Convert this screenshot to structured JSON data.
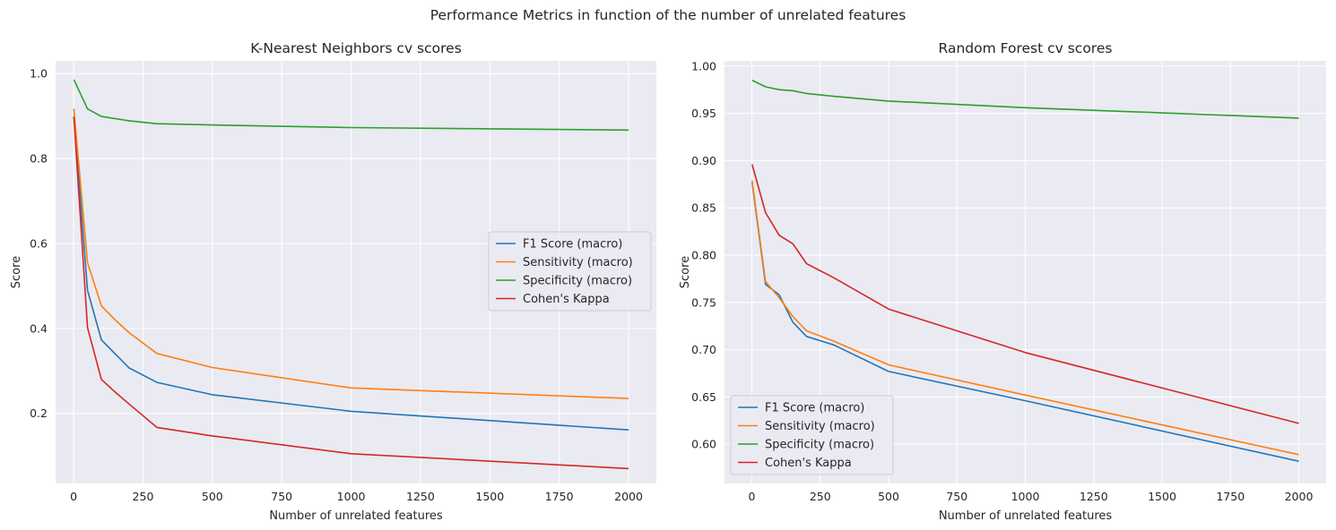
{
  "suptitle": "Performance Metrics in function of the number of unrelated features",
  "chart_data": [
    {
      "type": "line",
      "title": "K-Nearest Neighbors cv scores",
      "xlabel": "Number of unrelated features",
      "ylabel": "Score",
      "xlim": [
        -65,
        2100
      ],
      "ylim": [
        0.035,
        1.03
      ],
      "xticks": [
        0,
        250,
        500,
        750,
        1000,
        1250,
        1500,
        1750,
        2000
      ],
      "xtick_labels": [
        "0",
        "250",
        "500",
        "750",
        "1000",
        "1250",
        "1500",
        "1750",
        "2000"
      ],
      "yticks": [
        0.2,
        0.4,
        0.6,
        0.8,
        1.0
      ],
      "ytick_labels": [
        "0.2",
        "0.4",
        "0.6",
        "0.8",
        "1.0"
      ],
      "grid": true,
      "legend_position": "center-right",
      "x": [
        1,
        50,
        100,
        150,
        200,
        300,
        500,
        1000,
        2000
      ],
      "series": [
        {
          "name": "F1 Score (macro)",
          "color": "#1f77b4",
          "values": [
            0.9,
            0.49,
            0.373,
            0.34,
            0.307,
            0.273,
            0.244,
            0.205,
            0.161
          ]
        },
        {
          "name": "Sensitivity (macro)",
          "color": "#ff7f0e",
          "values": [
            0.917,
            0.555,
            0.453,
            0.42,
            0.39,
            0.341,
            0.308,
            0.26,
            0.235
          ]
        },
        {
          "name": "Specificity (macro)",
          "color": "#2ca02c",
          "values": [
            0.986,
            0.917,
            0.899,
            0.894,
            0.889,
            0.882,
            0.879,
            0.873,
            0.867
          ]
        },
        {
          "name": "Cohen's Kappa",
          "color": "#d62728",
          "values": [
            0.897,
            0.402,
            0.28,
            0.25,
            0.222,
            0.167,
            0.147,
            0.105,
            0.07
          ]
        }
      ]
    },
    {
      "type": "line",
      "title": "Random Forest cv scores",
      "xlabel": "Number of unrelated features",
      "ylabel": "Score",
      "xlim": [
        -100,
        2100
      ],
      "ylim": [
        0.5585,
        1.0055
      ],
      "xticks": [
        0,
        250,
        500,
        750,
        1000,
        1250,
        1500,
        1750,
        2000
      ],
      "xtick_labels": [
        "0",
        "250",
        "500",
        "750",
        "1000",
        "1250",
        "1500",
        "1750",
        "2000"
      ],
      "yticks": [
        0.6,
        0.65,
        0.7,
        0.75,
        0.8,
        0.85,
        0.9,
        0.95,
        1.0
      ],
      "ytick_labels": [
        "0.60",
        "0.65",
        "0.70",
        "0.75",
        "0.80",
        "0.85",
        "0.90",
        "0.95",
        "1.00"
      ],
      "grid": true,
      "legend_position": "lower-left",
      "x": [
        1,
        50,
        100,
        150,
        200,
        300,
        500,
        1000,
        2000
      ],
      "series": [
        {
          "name": "F1 Score (macro)",
          "color": "#1f77b4",
          "values": [
            0.877,
            0.769,
            0.758,
            0.729,
            0.714,
            0.705,
            0.677,
            0.646,
            0.582
          ]
        },
        {
          "name": "Sensitivity (macro)",
          "color": "#ff7f0e",
          "values": [
            0.879,
            0.772,
            0.755,
            0.735,
            0.72,
            0.709,
            0.684,
            0.652,
            0.589
          ]
        },
        {
          "name": "Specificity (macro)",
          "color": "#2ca02c",
          "values": [
            0.985,
            0.978,
            0.975,
            0.974,
            0.971,
            0.968,
            0.963,
            0.956,
            0.945
          ]
        },
        {
          "name": "Cohen's Kappa",
          "color": "#d62728",
          "values": [
            0.896,
            0.845,
            0.821,
            0.812,
            0.791,
            0.776,
            0.743,
            0.697,
            0.622
          ]
        }
      ]
    }
  ]
}
